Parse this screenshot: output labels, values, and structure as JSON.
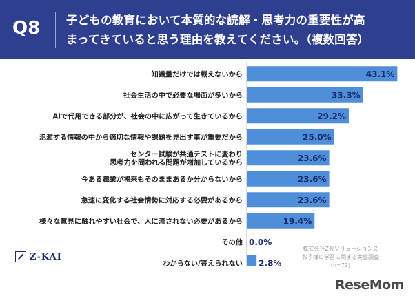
{
  "header": {
    "question_no": "Q8",
    "question_line1": "子どもの教育において本質的な読解・思考力の重要性が高",
    "question_line2": "まってきていると思う理由を教えてください。（複数回答）"
  },
  "logo": {
    "name": "Z-KAI"
  },
  "source": {
    "line1": "株式会社Z会ソリューションズ",
    "line2": "お子様の学習に関する実態調査",
    "line3": "(n=72)"
  },
  "watermark": "ReseMom",
  "colors": {
    "header_bg": "#2f3f8f",
    "bar": "#4f8fd9",
    "value_text": "#1c2a6b"
  },
  "chart_data": {
    "type": "bar",
    "orientation": "horizontal",
    "categories": [
      [
        "知識量だけでは戦えないから"
      ],
      [
        "社会生活の中で必要な場面が多いから"
      ],
      [
        "AIで代用できる部分が、社会の中に広がって生きているから"
      ],
      [
        "氾濫する情報の中から適切な情報や課題を見出す事が重要だから"
      ],
      [
        "センター試験が共通テストに変わり",
        "思考力を問われる問題が増加しているから"
      ],
      [
        "今ある職業が将来もそのままあるか分からないから"
      ],
      [
        "急速に変化する社会情勢に対応する必要があるから"
      ],
      [
        "様々な意見に触れやすい社会で、人に流されない必要があるから"
      ],
      [
        "その他"
      ],
      [
        "わからない/答えられない"
      ]
    ],
    "values": [
      43.1,
      33.3,
      29.2,
      25.0,
      23.6,
      23.6,
      23.6,
      19.4,
      0.0,
      2.8
    ],
    "value_labels": [
      "43.1%",
      "33.3%",
      "29.2%",
      "25.0%",
      "23.6%",
      "23.6%",
      "23.6%",
      "19.4%",
      "0.0%",
      "2.8%"
    ],
    "xlim": [
      0,
      45
    ],
    "grid": false,
    "legend": "none"
  }
}
